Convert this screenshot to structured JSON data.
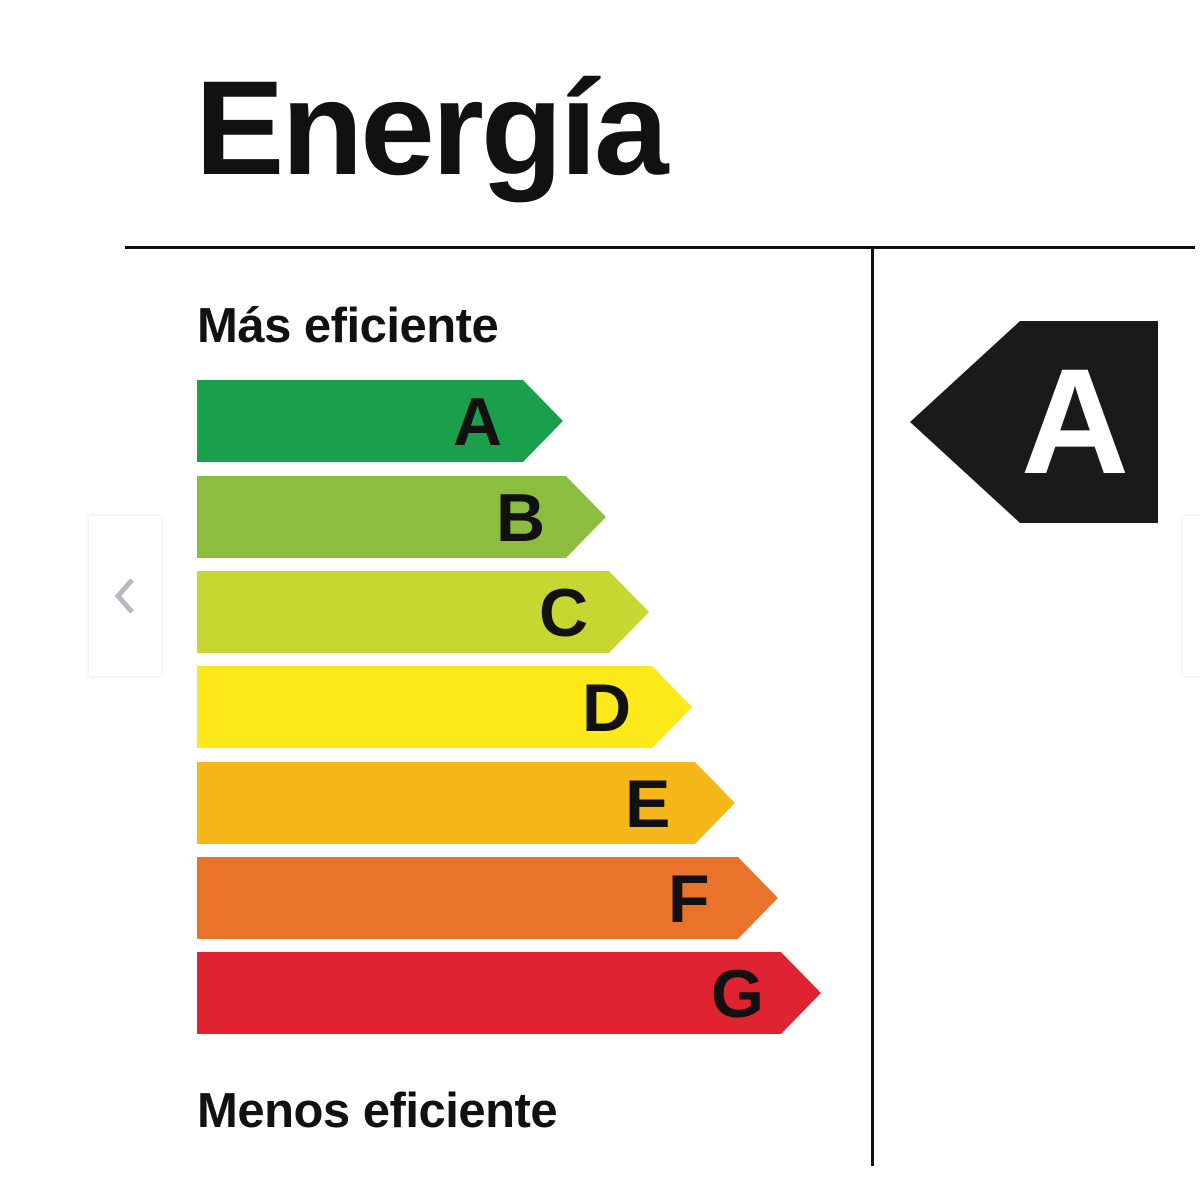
{
  "title": "Energía",
  "label_top": "Más eficiente",
  "label_bottom": "Menos eficiente",
  "classes": [
    {
      "letter": "A",
      "color": "#1aa04a"
    },
    {
      "letter": "B",
      "color": "#8cbd3f"
    },
    {
      "letter": "C",
      "color": "#c8d631"
    },
    {
      "letter": "D",
      "color": "#fde81a"
    },
    {
      "letter": "E",
      "color": "#f6b819"
    },
    {
      "letter": "F",
      "color": "#e9732a"
    },
    {
      "letter": "G",
      "color": "#e02331"
    }
  ],
  "rating": {
    "letter": "A",
    "color": "#1a1a1a"
  },
  "carousel": {
    "prev_icon": "chevron-left-icon",
    "next_icon": "chevron-right-icon"
  }
}
